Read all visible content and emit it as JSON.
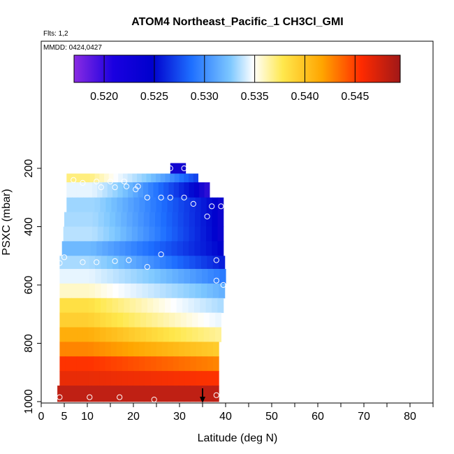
{
  "chart_data": {
    "type": "heatmap",
    "title": "ATOM4 Northeast_Pacific_1 CH3Cl_GMI",
    "flights_label": "Flts: 1,2",
    "date_label": "MMDD: 0424,0427",
    "xlabel": "Latitude (deg N)",
    "ylabel": "PSXC (mbar)",
    "xlim": [
      0,
      85
    ],
    "ylim": [
      1000,
      0
    ],
    "x_ticks": [
      "0",
      "5",
      "10",
      "20",
      "30",
      "40",
      "50",
      "60",
      "70",
      "80"
    ],
    "x_tick_values": [
      0,
      5,
      10,
      20,
      30,
      40,
      50,
      60,
      70,
      80
    ],
    "y_ticks": [
      "200",
      "400",
      "600",
      "800",
      "1000"
    ],
    "y_tick_values": [
      200,
      400,
      600,
      800,
      1000
    ],
    "colorbar": {
      "range": [
        0.517,
        0.5495
      ],
      "tick_labels": [
        "0.520",
        "0.525",
        "0.530",
        "0.535",
        "0.540",
        "0.545"
      ],
      "tick_values": [
        0.52,
        0.525,
        0.53,
        0.535,
        0.54,
        0.545
      ],
      "colors": [
        "#8a2be2",
        "#0000cd",
        "#1e6fff",
        "#7ec8ff",
        "#ffffff",
        "#ffe84d",
        "#ffa500",
        "#ff3300",
        "#aa1a1a"
      ]
    },
    "bands": [
      {
        "p": [
          182,
          218
        ],
        "lat": [
          28,
          31.3
        ],
        "v0": 0.5205,
        "v1": 0.5205
      },
      {
        "p": [
          218,
          248
        ],
        "lat": [
          5.5,
          34
        ],
        "v0": 0.5362,
        "v1": 0.5233
      },
      {
        "p": [
          248,
          300
        ],
        "lat": [
          5.5,
          36.5
        ],
        "v0": 0.5325,
        "v1": 0.5195
      },
      {
        "p": [
          300,
          350
        ],
        "lat": [
          5.5,
          39.5
        ],
        "v0": 0.5302,
        "v1": 0.5205
      },
      {
        "p": [
          350,
          400
        ],
        "lat": [
          5,
          39.5
        ],
        "v0": 0.5305,
        "v1": 0.5205
      },
      {
        "p": [
          400,
          450
        ],
        "lat": [
          4.8,
          39.5
        ],
        "v0": 0.531,
        "v1": 0.5205
      },
      {
        "p": [
          450,
          500
        ],
        "lat": [
          4.5,
          39.5
        ],
        "v0": 0.5285,
        "v1": 0.521
      },
      {
        "p": [
          500,
          545
        ],
        "lat": [
          4,
          39.8
        ],
        "v0": 0.5305,
        "v1": 0.522
      },
      {
        "p": [
          545,
          595
        ],
        "lat": [
          4,
          40
        ],
        "v0": 0.5325,
        "v1": 0.5255
      },
      {
        "p": [
          595,
          645
        ],
        "lat": [
          4,
          39.8
        ],
        "v0": 0.5345,
        "v1": 0.528
      },
      {
        "p": [
          645,
          695
        ],
        "lat": [
          4,
          39.5
        ],
        "v0": 0.5378,
        "v1": 0.5305
      },
      {
        "p": [
          695,
          745
        ],
        "lat": [
          4,
          39
        ],
        "v0": 0.5388,
        "v1": 0.5325
      },
      {
        "p": [
          745,
          795
        ],
        "lat": [
          4,
          39
        ],
        "v0": 0.5408,
        "v1": 0.5355
      },
      {
        "p": [
          795,
          845
        ],
        "lat": [
          4,
          38.5
        ],
        "v0": 0.5425,
        "v1": 0.539
      },
      {
        "p": [
          845,
          895
        ],
        "lat": [
          4,
          38.5
        ],
        "v0": 0.5455,
        "v1": 0.5425
      },
      {
        "p": [
          895,
          945
        ],
        "lat": [
          4,
          38.5
        ],
        "v0": 0.5465,
        "v1": 0.5455
      },
      {
        "p": [
          945,
          1000
        ],
        "lat": [
          3.5,
          38.5
        ],
        "v0": 0.5485,
        "v1": 0.5485
      }
    ],
    "points": [
      [
        28,
        200
      ],
      [
        31,
        200
      ],
      [
        7,
        240
      ],
      [
        9,
        250
      ],
      [
        12,
        245
      ],
      [
        15,
        245
      ],
      [
        18,
        245
      ],
      [
        21,
        262
      ],
      [
        20.5,
        272
      ],
      [
        13,
        265
      ],
      [
        16,
        265
      ],
      [
        18.5,
        262
      ],
      [
        23,
        300
      ],
      [
        26,
        300
      ],
      [
        28,
        300
      ],
      [
        31,
        300
      ],
      [
        33,
        322
      ],
      [
        37,
        330
      ],
      [
        39,
        330
      ],
      [
        36,
        365
      ],
      [
        5,
        505
      ],
      [
        4,
        525
      ],
      [
        9,
        522
      ],
      [
        12,
        522
      ],
      [
        16,
        518
      ],
      [
        19,
        515
      ],
      [
        23,
        538
      ],
      [
        26,
        495
      ],
      [
        38,
        515
      ],
      [
        38,
        585
      ],
      [
        39.5,
        600
      ],
      [
        4,
        985
      ],
      [
        10.5,
        985
      ],
      [
        17,
        985
      ],
      [
        24.5,
        993
      ],
      [
        38,
        978
      ]
    ],
    "arrow_lat": 35
  }
}
